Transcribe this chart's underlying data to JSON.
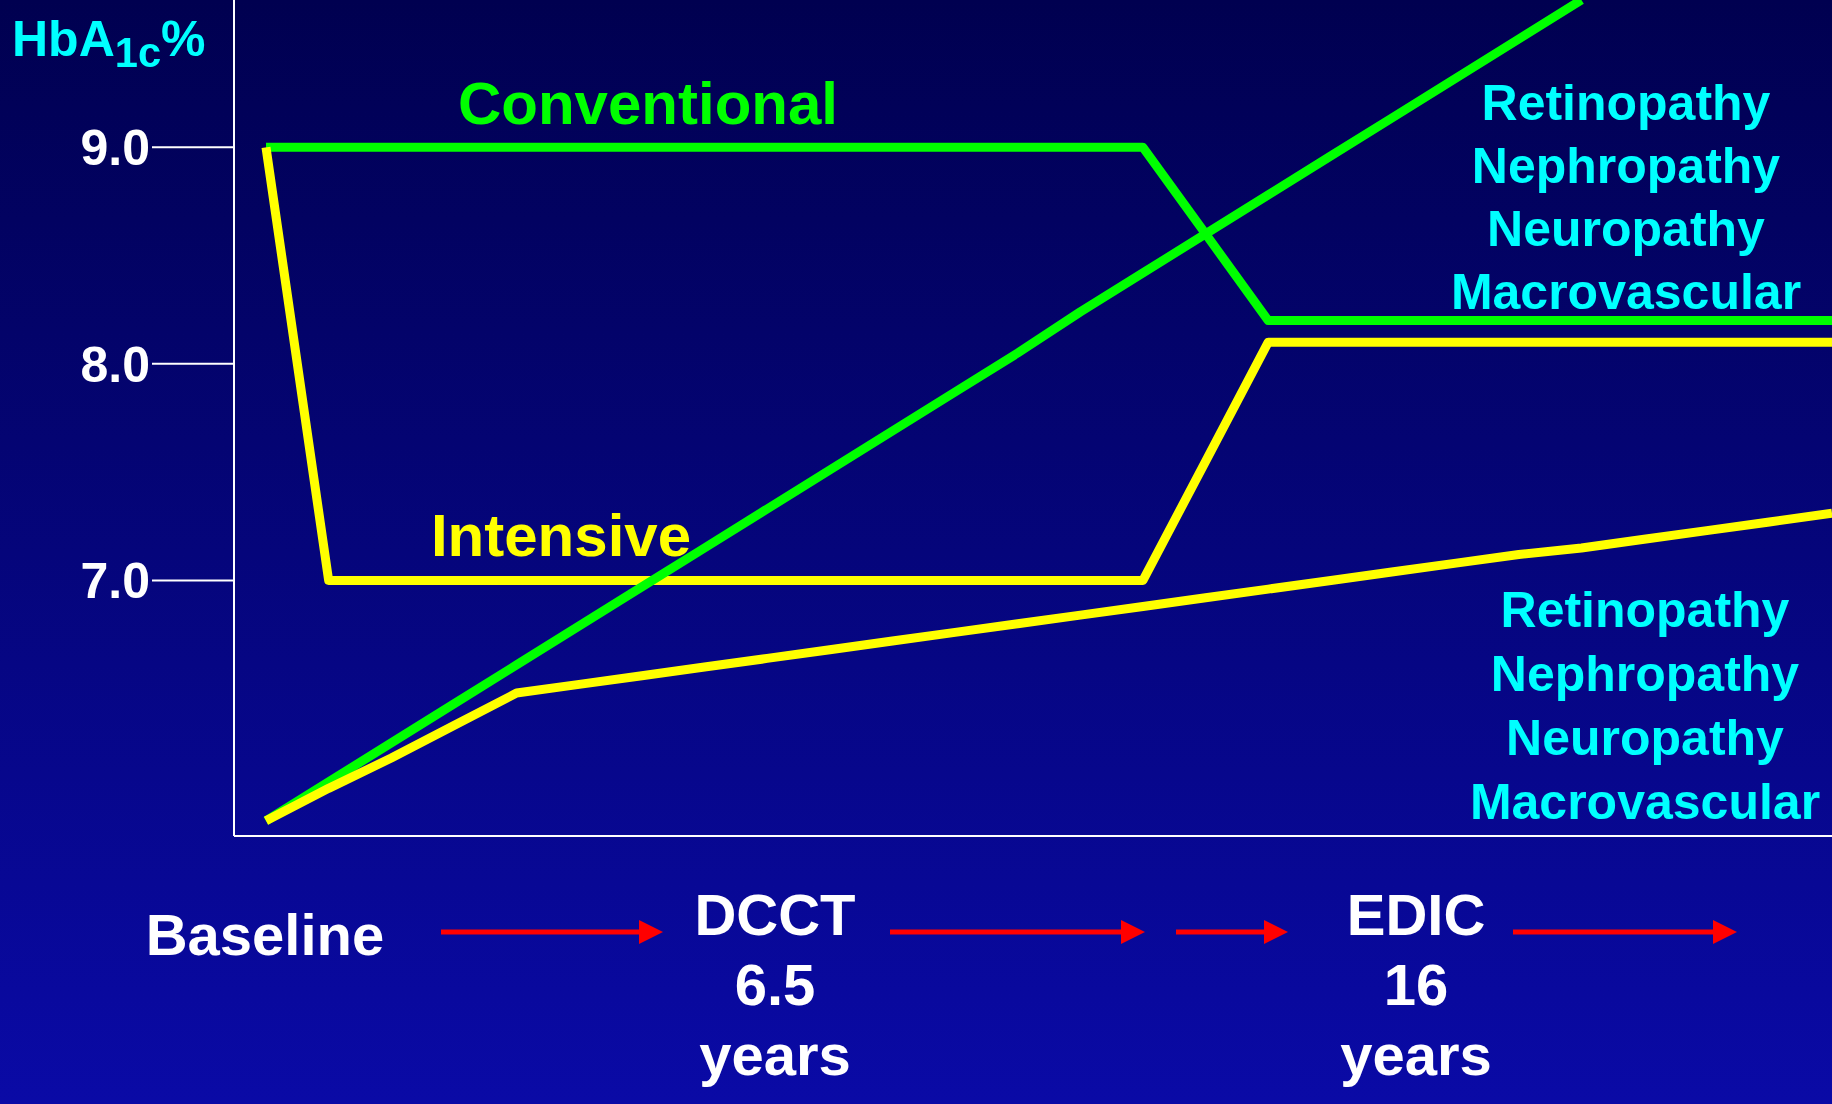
{
  "chart_data": {
    "type": "line",
    "ylabel": "HbA$_{1c}$%",
    "categories": [
      null,
      null,
      null,
      null,
      null,
      null,
      null,
      null,
      null,
      null,
      null,
      null,
      null,
      null,
      null,
      null,
      null,
      null,
      null,
      null,
      null,
      null,
      null,
      null,
      null,
      null
    ],
    "ylim": [
      5.82,
      9.68
    ],
    "yticks": [
      {
        "value": 7,
        "label": "7.0"
      },
      {
        "value": 8,
        "label": "8.0"
      },
      {
        "value": 9,
        "label": "9.0"
      }
    ],
    "tick_labels": "y",
    "grid": false,
    "marker": "none",
    "series": [
      {
        "name": "Conventional",
        "color": "#00ff00",
        "values": [
          9.0,
          9.0,
          9.0,
          9.0,
          9.0,
          9.0,
          9.0,
          9.0,
          9.0,
          9.0,
          9.0,
          9.0,
          9.0,
          9.0,
          9.0,
          8.6,
          8.2,
          8.2,
          8.2,
          8.2,
          8.2,
          8.2,
          8.2,
          8.2,
          8.2,
          8.2
        ]
      },
      {
        "name": "Intensive",
        "color": "#ffff00",
        "values": [
          9.0,
          7.0,
          7.0,
          7.0,
          7.0,
          7.0,
          7.0,
          7.0,
          7.0,
          7.0,
          7.0,
          7.0,
          7.0,
          7.0,
          7.0,
          7.55,
          8.1,
          8.1,
          8.1,
          8.1,
          8.1,
          8.1,
          8.1,
          8.1,
          8.1,
          8.1
        ]
      },
      {
        "color": "#00ff00",
        "values": [
          5.89,
          6.07,
          6.25,
          6.43,
          6.61,
          6.79,
          6.97,
          7.15,
          7.33,
          7.51,
          7.69,
          7.87,
          8.05,
          8.24,
          8.42,
          8.6,
          8.78,
          8.96,
          9.14,
          9.32,
          9.5,
          9.68,
          null,
          null,
          null,
          null
        ]
      },
      {
        "color": "#ffff00",
        "values": [
          5.89,
          6.04,
          6.18,
          6.33,
          6.48,
          6.52,
          6.56,
          6.6,
          6.64,
          6.68,
          6.72,
          6.76,
          6.8,
          6.84,
          6.88,
          6.92,
          6.96,
          7.0,
          7.04,
          7.08,
          7.12,
          7.15,
          7.19,
          7.23,
          7.27,
          7.31
        ]
      }
    ],
    "annotations": [
      "Retinopathy\nNephropathy\nNeuropathy\nMacrovascular",
      "Retinopathy\nNephropathy\nNeuropathy\nMacrovascular",
      "Baseline",
      "DCCT\n6.5\nyears",
      "EDIC\n16\nyears"
    ]
  }
}
